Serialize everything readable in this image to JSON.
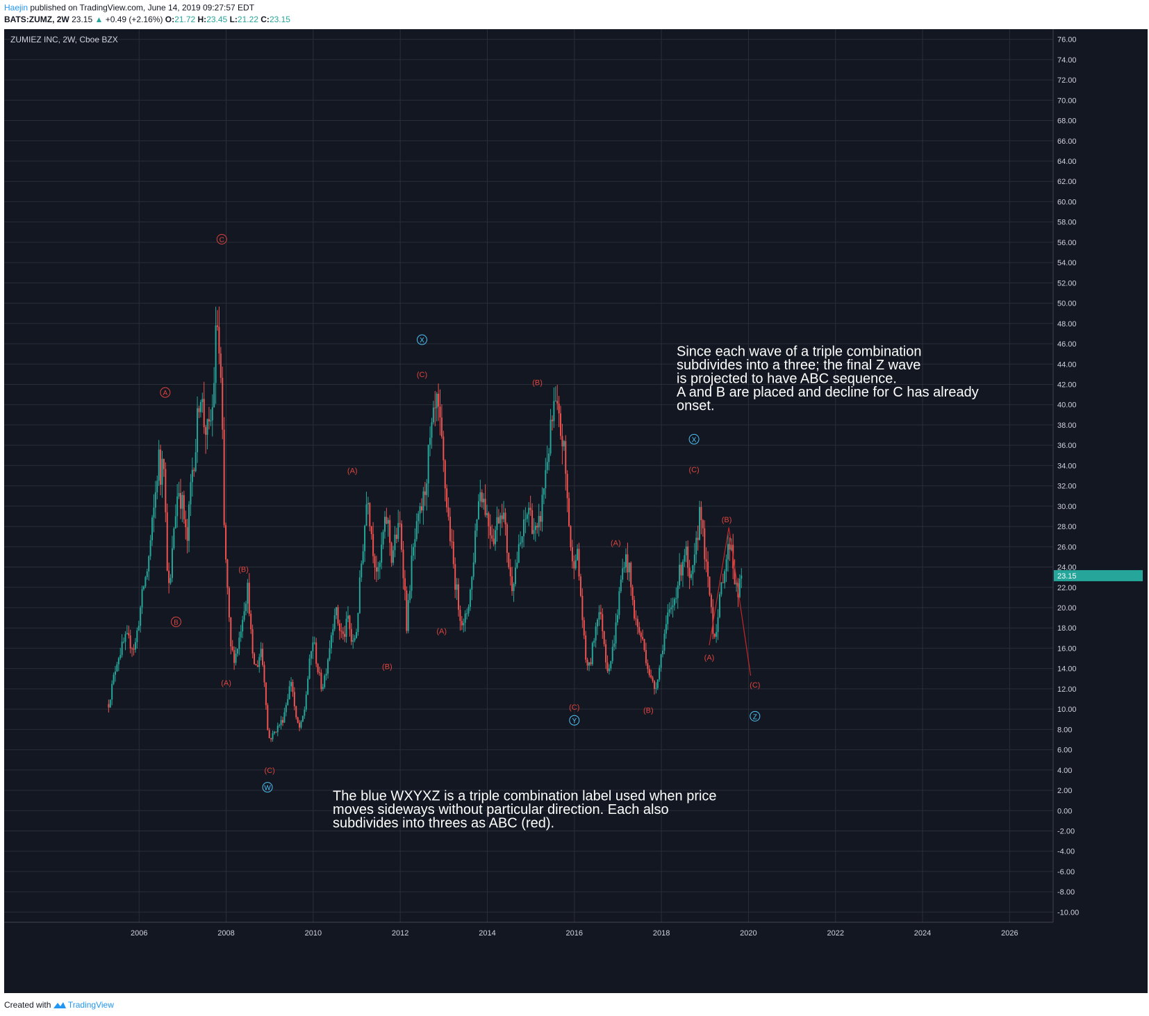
{
  "header": {
    "author": "Haejin",
    "published_text": "published on TradingView.com, June 14, 2019 09:27:57 EDT",
    "symbol": "BATS:ZUMZ, 2W",
    "last": "23.15",
    "change": "+0.49 (+2.16%)",
    "o_label": "O:",
    "o_value": "21.72",
    "h_label": "H:",
    "h_value": "23.45",
    "l_label": "L:",
    "l_value": "21.22",
    "c_label": "C:",
    "c_value": "23.15"
  },
  "footer": {
    "created_with": "Created with",
    "brand": "TradingView"
  },
  "colors": {
    "background": "#131722",
    "grid": "#2a2e39",
    "up": "#26a69a",
    "down": "#ef5350",
    "wave_red": "#e0443e",
    "wave_blue": "#4fc3f7",
    "text": "#d1d4dc",
    "price_tag": "#26a69a"
  },
  "chart_data": {
    "type": "candlestick",
    "title": "ZUMIEZ INC, 2W, Cboe BZX",
    "x_ticks": [
      "2006",
      "2008",
      "2010",
      "2012",
      "2014",
      "2016",
      "2018",
      "2020",
      "2022",
      "2024",
      "2026"
    ],
    "xlim": [
      2002.9,
      2027.0
    ],
    "ylim": [
      -11.0,
      77.0
    ],
    "y_ticks": [
      76.0,
      74.0,
      72.0,
      70.0,
      68.0,
      66.0,
      64.0,
      62.0,
      60.0,
      58.0,
      56.0,
      54.0,
      52.0,
      50.0,
      48.0,
      46.0,
      44.0,
      42.0,
      40.0,
      38.0,
      36.0,
      34.0,
      32.0,
      30.0,
      28.0,
      26.0,
      24.0,
      22.0,
      20.0,
      18.0,
      16.0,
      14.0,
      12.0,
      10.0,
      8.0,
      6.0,
      4.0,
      2.0,
      0.0,
      -2.0,
      -4.0,
      -6.0,
      -8.0,
      -10.0
    ],
    "last_price": "23.15",
    "last_price_value": 23.15,
    "price_path": [
      [
        2005.3,
        10.5
      ],
      [
        2005.5,
        15
      ],
      [
        2005.7,
        17
      ],
      [
        2005.9,
        16
      ],
      [
        2006.0,
        19
      ],
      [
        2006.1,
        22
      ],
      [
        2006.2,
        24
      ],
      [
        2006.35,
        30
      ],
      [
        2006.45,
        35
      ],
      [
        2006.5,
        32
      ],
      [
        2006.55,
        38
      ],
      [
        2006.6,
        30
      ],
      [
        2006.65,
        24
      ],
      [
        2006.7,
        21
      ],
      [
        2006.8,
        28
      ],
      [
        2006.9,
        32
      ],
      [
        2007.0,
        30
      ],
      [
        2007.1,
        26
      ],
      [
        2007.2,
        33
      ],
      [
        2007.3,
        36
      ],
      [
        2007.4,
        42
      ],
      [
        2007.5,
        38
      ],
      [
        2007.6,
        37
      ],
      [
        2007.7,
        40
      ],
      [
        2007.75,
        46
      ],
      [
        2007.8,
        48
      ],
      [
        2007.85,
        44
      ],
      [
        2007.9,
        40
      ],
      [
        2007.95,
        28
      ],
      [
        2008.0,
        24
      ],
      [
        2008.05,
        20
      ],
      [
        2008.1,
        16
      ],
      [
        2008.2,
        15
      ],
      [
        2008.3,
        17
      ],
      [
        2008.4,
        20
      ],
      [
        2008.5,
        22
      ],
      [
        2008.55,
        19
      ],
      [
        2008.6,
        15
      ],
      [
        2008.7,
        14
      ],
      [
        2008.8,
        16
      ],
      [
        2008.9,
        12
      ],
      [
        2008.95,
        8
      ],
      [
        2009.0,
        7
      ],
      [
        2009.15,
        8
      ],
      [
        2009.3,
        9
      ],
      [
        2009.4,
        11
      ],
      [
        2009.5,
        13
      ],
      [
        2009.6,
        9
      ],
      [
        2009.7,
        8
      ],
      [
        2009.8,
        10
      ],
      [
        2009.9,
        14
      ],
      [
        2010.0,
        17
      ],
      [
        2010.1,
        14
      ],
      [
        2010.2,
        12
      ],
      [
        2010.3,
        14
      ],
      [
        2010.4,
        17
      ],
      [
        2010.5,
        20
      ],
      [
        2010.6,
        18
      ],
      [
        2010.7,
        17
      ],
      [
        2010.8,
        19
      ],
      [
        2010.9,
        16
      ],
      [
        2011.0,
        18
      ],
      [
        2011.1,
        24
      ],
      [
        2011.2,
        29
      ],
      [
        2011.25,
        32
      ],
      [
        2011.3,
        29
      ],
      [
        2011.4,
        25
      ],
      [
        2011.5,
        23
      ],
      [
        2011.6,
        27
      ],
      [
        2011.7,
        29
      ],
      [
        2011.8,
        25
      ],
      [
        2011.9,
        27
      ],
      [
        2012.0,
        28
      ],
      [
        2012.1,
        22
      ],
      [
        2012.15,
        18
      ],
      [
        2012.25,
        24
      ],
      [
        2012.35,
        27
      ],
      [
        2012.45,
        29
      ],
      [
        2012.55,
        31
      ],
      [
        2012.65,
        35
      ],
      [
        2012.75,
        38
      ],
      [
        2012.85,
        40
      ],
      [
        2012.95,
        36
      ],
      [
        2013.05,
        31
      ],
      [
        2013.15,
        27
      ],
      [
        2013.25,
        23
      ],
      [
        2013.35,
        20
      ],
      [
        2013.45,
        18
      ],
      [
        2013.55,
        20
      ],
      [
        2013.65,
        23
      ],
      [
        2013.75,
        29
      ],
      [
        2013.85,
        32
      ],
      [
        2013.95,
        30
      ],
      [
        2014.05,
        28
      ],
      [
        2014.15,
        27
      ],
      [
        2014.25,
        29
      ],
      [
        2014.35,
        30
      ],
      [
        2014.45,
        26
      ],
      [
        2014.55,
        22
      ],
      [
        2014.65,
        24
      ],
      [
        2014.75,
        26
      ],
      [
        2014.85,
        28
      ],
      [
        2014.95,
        30
      ],
      [
        2015.05,
        28
      ],
      [
        2015.15,
        27
      ],
      [
        2015.25,
        30
      ],
      [
        2015.35,
        34
      ],
      [
        2015.45,
        37
      ],
      [
        2015.55,
        40
      ],
      [
        2015.65,
        38
      ],
      [
        2015.75,
        36
      ],
      [
        2015.85,
        30
      ],
      [
        2015.95,
        24
      ],
      [
        2016.05,
        26
      ],
      [
        2016.15,
        21
      ],
      [
        2016.25,
        15
      ],
      [
        2016.35,
        14
      ],
      [
        2016.45,
        17
      ],
      [
        2016.55,
        20
      ],
      [
        2016.65,
        18
      ],
      [
        2016.75,
        14
      ],
      [
        2016.85,
        15
      ],
      [
        2016.95,
        18
      ],
      [
        2017.05,
        22
      ],
      [
        2017.15,
        25
      ],
      [
        2017.25,
        24
      ],
      [
        2017.35,
        20
      ],
      [
        2017.45,
        18
      ],
      [
        2017.55,
        17
      ],
      [
        2017.65,
        15
      ],
      [
        2017.75,
        13
      ],
      [
        2017.85,
        12
      ],
      [
        2017.95,
        14
      ],
      [
        2018.05,
        17
      ],
      [
        2018.15,
        19
      ],
      [
        2018.25,
        20
      ],
      [
        2018.35,
        22
      ],
      [
        2018.45,
        24
      ],
      [
        2018.55,
        26
      ],
      [
        2018.65,
        22
      ],
      [
        2018.75,
        24
      ],
      [
        2018.85,
        28
      ],
      [
        2018.9,
        31
      ],
      [
        2018.95,
        27
      ],
      [
        2019.05,
        23
      ],
      [
        2019.15,
        20
      ],
      [
        2019.2,
        17
      ],
      [
        2019.3,
        19
      ],
      [
        2019.4,
        23
      ],
      [
        2019.5,
        25
      ],
      [
        2019.6,
        27
      ],
      [
        2019.65,
        24
      ],
      [
        2019.75,
        21
      ],
      [
        2019.85,
        23.15
      ]
    ],
    "wave_labels": [
      {
        "text": "C",
        "x": 2007.9,
        "y": 56.3,
        "color": "red",
        "style": "circle"
      },
      {
        "text": "A",
        "x": 2006.6,
        "y": 41.2,
        "color": "red",
        "style": "circle"
      },
      {
        "text": "B",
        "x": 2006.85,
        "y": 18.6,
        "color": "red",
        "style": "circle"
      },
      {
        "text": "(B)",
        "x": 2008.4,
        "y": 23.8,
        "color": "red",
        "style": "paren"
      },
      {
        "text": "(A)",
        "x": 2008.0,
        "y": 12.6,
        "color": "red",
        "style": "paren"
      },
      {
        "text": "(C)",
        "x": 2009.0,
        "y": 4.0,
        "color": "red",
        "style": "paren"
      },
      {
        "text": "W",
        "x": 2008.95,
        "y": 2.3,
        "color": "blue",
        "style": "circle"
      },
      {
        "text": "(A)",
        "x": 2010.9,
        "y": 33.5,
        "color": "red",
        "style": "paren"
      },
      {
        "text": "(B)",
        "x": 2011.7,
        "y": 14.2,
        "color": "red",
        "style": "paren"
      },
      {
        "text": "X",
        "x": 2012.5,
        "y": 46.4,
        "color": "blue",
        "style": "circle"
      },
      {
        "text": "(C)",
        "x": 2012.5,
        "y": 43.0,
        "color": "red",
        "style": "paren"
      },
      {
        "text": "(A)",
        "x": 2012.95,
        "y": 17.7,
        "color": "red",
        "style": "paren"
      },
      {
        "text": "(B)",
        "x": 2015.15,
        "y": 42.2,
        "color": "red",
        "style": "paren"
      },
      {
        "text": "(C)",
        "x": 2016.0,
        "y": 10.2,
        "color": "red",
        "style": "paren"
      },
      {
        "text": "Y",
        "x": 2016.0,
        "y": 8.9,
        "color": "blue",
        "style": "circle"
      },
      {
        "text": "(A)",
        "x": 2016.95,
        "y": 26.4,
        "color": "red",
        "style": "paren"
      },
      {
        "text": "(B)",
        "x": 2017.7,
        "y": 9.9,
        "color": "red",
        "style": "paren"
      },
      {
        "text": "X",
        "x": 2018.75,
        "y": 36.6,
        "color": "blue",
        "style": "circle"
      },
      {
        "text": "(C)",
        "x": 2018.75,
        "y": 33.6,
        "color": "red",
        "style": "paren"
      },
      {
        "text": "(A)",
        "x": 2019.1,
        "y": 15.1,
        "color": "red",
        "style": "paren"
      },
      {
        "text": "(B)",
        "x": 2019.5,
        "y": 28.7,
        "color": "red",
        "style": "paren"
      },
      {
        "text": "(C)",
        "x": 2020.15,
        "y": 12.4,
        "color": "red",
        "style": "paren"
      },
      {
        "text": "Z",
        "x": 2020.15,
        "y": 9.3,
        "color": "blue",
        "style": "circle"
      }
    ],
    "projection_lines": [
      {
        "from": [
          2019.1,
          16.3
        ],
        "to": [
          2019.55,
          27.9
        ]
      },
      {
        "from": [
          2019.55,
          27.9
        ],
        "to": [
          2020.05,
          13.3
        ]
      }
    ],
    "annotations": [
      {
        "x": 2018.35,
        "y": 44.8,
        "lines": [
          "Since each wave of a triple combination",
          "subdivides into a three; the final Z wave",
          "is projected to have ABC sequence.",
          "",
          "A and B are placed and decline for C has already",
          "onset."
        ]
      },
      {
        "x": 2010.45,
        "y": 1.0,
        "lines": [
          "The blue WXYXZ is a triple combination label used when price",
          "moves sideways without particular direction. Each also",
          "subdivides into threes as ABC (red)."
        ]
      }
    ]
  }
}
